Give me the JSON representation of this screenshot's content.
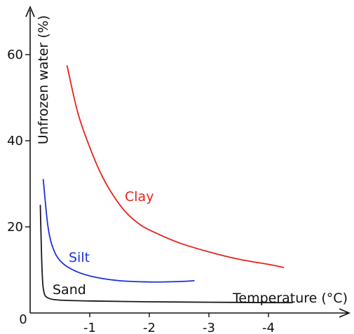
{
  "chart_data": {
    "type": "line",
    "xlabel": "Temperature (°C)",
    "ylabel": "Unfrozen water (%)",
    "origin_label": "0",
    "xticks": [
      {
        "value": -1,
        "label": "-1"
      },
      {
        "value": -2,
        "label": "-2"
      },
      {
        "value": -3,
        "label": "-3"
      },
      {
        "value": -4,
        "label": "-4"
      }
    ],
    "yticks": [
      {
        "value": 20,
        "label": "20"
      },
      {
        "value": 40,
        "label": "40"
      },
      {
        "value": 60,
        "label": "60"
      }
    ],
    "xlim": [
      0,
      -4.8
    ],
    "ylim": [
      0,
      70
    ],
    "grid": false,
    "legend": "none",
    "series": [
      {
        "name": "Clay",
        "color": "#e8221a",
        "points": [
          [
            -0.62,
            57.4
          ],
          [
            -0.8,
            46.5
          ],
          [
            -1.0,
            38.5
          ],
          [
            -1.2,
            32.0
          ],
          [
            -1.4,
            27.2
          ],
          [
            -1.6,
            23.5
          ],
          [
            -1.8,
            21.0
          ],
          [
            -2.0,
            19.3
          ],
          [
            -2.5,
            16.3
          ],
          [
            -3.0,
            14.2
          ],
          [
            -3.5,
            12.5
          ],
          [
            -4.0,
            11.3
          ],
          [
            -4.25,
            10.6
          ]
        ]
      },
      {
        "name": "Silt",
        "color": "#1c31d8",
        "points": [
          [
            -0.22,
            31.0
          ],
          [
            -0.3,
            20.0
          ],
          [
            -0.4,
            14.5
          ],
          [
            -0.55,
            11.5
          ],
          [
            -0.8,
            9.5
          ],
          [
            -1.1,
            8.3
          ],
          [
            -1.5,
            7.5
          ],
          [
            -2.0,
            7.2
          ],
          [
            -2.5,
            7.3
          ],
          [
            -2.75,
            7.5
          ]
        ]
      },
      {
        "name": "Sand",
        "color": "#1a1a1a",
        "points": [
          [
            -0.17,
            25.0
          ],
          [
            -0.2,
            10.0
          ],
          [
            -0.23,
            5.0
          ],
          [
            -0.3,
            3.5
          ],
          [
            -0.5,
            3.0
          ],
          [
            -1.0,
            2.8
          ],
          [
            -2.0,
            2.6
          ],
          [
            -3.0,
            2.5
          ],
          [
            -4.0,
            2.4
          ],
          [
            -4.4,
            2.4
          ]
        ]
      }
    ]
  }
}
